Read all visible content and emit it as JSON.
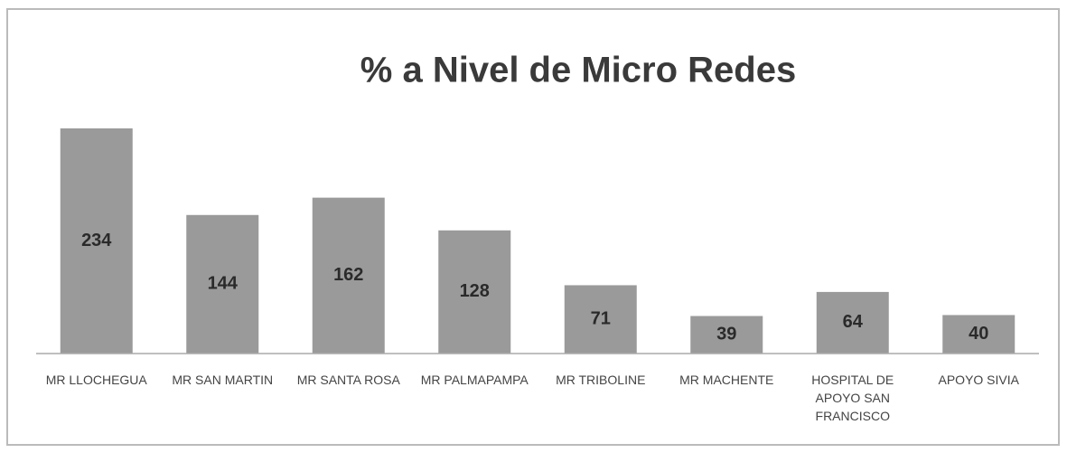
{
  "chart_data": {
    "type": "bar",
    "title": "% a Nivel de Micro Redes",
    "categories": [
      "MR LLOCHEGUA",
      "MR SAN MARTIN",
      "MR SANTA ROSA",
      "MR PALMAPAMPA",
      "MR TRIBOLINE",
      "MR MACHENTE",
      "HOSPITAL DE APOYO SAN FRANCISCO",
      "APOYO SIVIA"
    ],
    "values": [
      234,
      144,
      162,
      128,
      71,
      39,
      64,
      40
    ],
    "color": "#9a9a9a"
  }
}
